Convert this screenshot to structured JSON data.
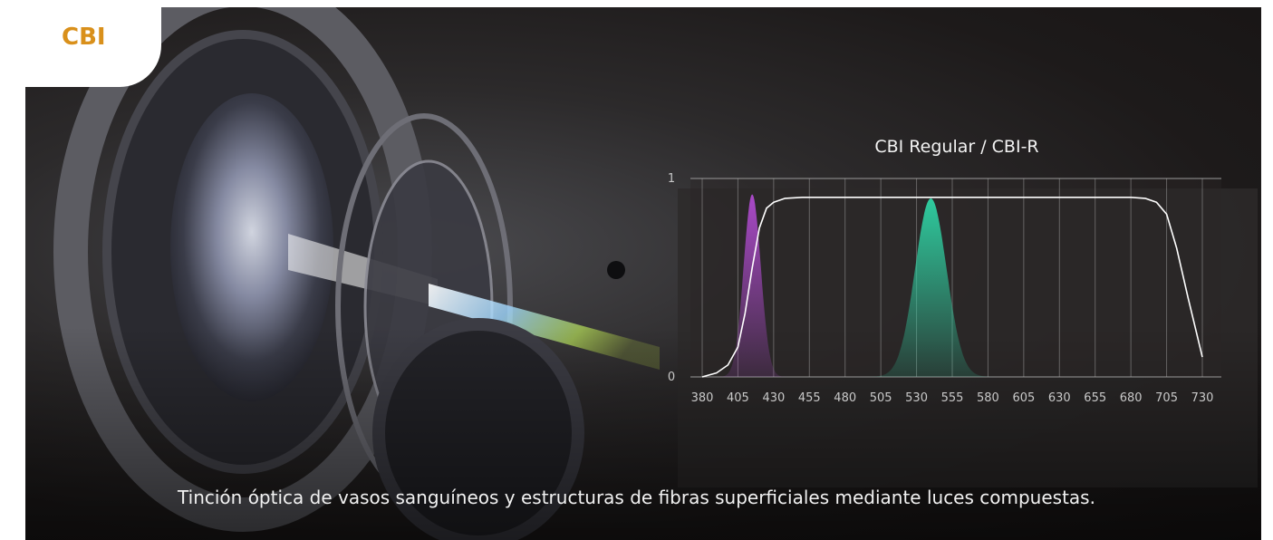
{
  "badge": {
    "label": "CBI",
    "color": "#d9901b"
  },
  "caption": "Tinción óptica de vasos sanguíneos y estructuras de fibras superficiales mediante luces compuestas.",
  "chart_data": {
    "type": "line",
    "title": "CBI Regular / CBI-R",
    "xlabel": "",
    "ylabel": "",
    "xlim": [
      380,
      730
    ],
    "ylim": [
      0,
      1
    ],
    "x_ticks": [
      "380",
      "405",
      "430",
      "455",
      "480",
      "505",
      "530",
      "555",
      "580",
      "605",
      "630",
      "655",
      "680",
      "705",
      "730"
    ],
    "y_ticks": [
      "0",
      "1"
    ],
    "grid": "vertical",
    "series": [
      {
        "name": "",
        "kind": "line",
        "color": "#ffffff",
        "x": [
          380,
          390,
          398,
          405,
          410,
          415,
          420,
          425,
          430,
          438,
          450,
          470,
          500,
          550,
          600,
          650,
          680,
          690,
          698,
          705,
          712,
          720,
          726,
          730
        ],
        "y": [
          0.0,
          0.02,
          0.06,
          0.15,
          0.32,
          0.55,
          0.75,
          0.85,
          0.88,
          0.9,
          0.905,
          0.905,
          0.905,
          0.905,
          0.905,
          0.905,
          0.905,
          0.9,
          0.88,
          0.82,
          0.65,
          0.4,
          0.22,
          0.1
        ]
      },
      {
        "name": "",
        "kind": "band",
        "color": "#b04bd0",
        "center": 415,
        "peak": 0.92,
        "width": 6
      },
      {
        "name": "",
        "kind": "band",
        "color": "#2fd3a4",
        "center": 540,
        "peak": 0.9,
        "width": 11
      }
    ]
  }
}
